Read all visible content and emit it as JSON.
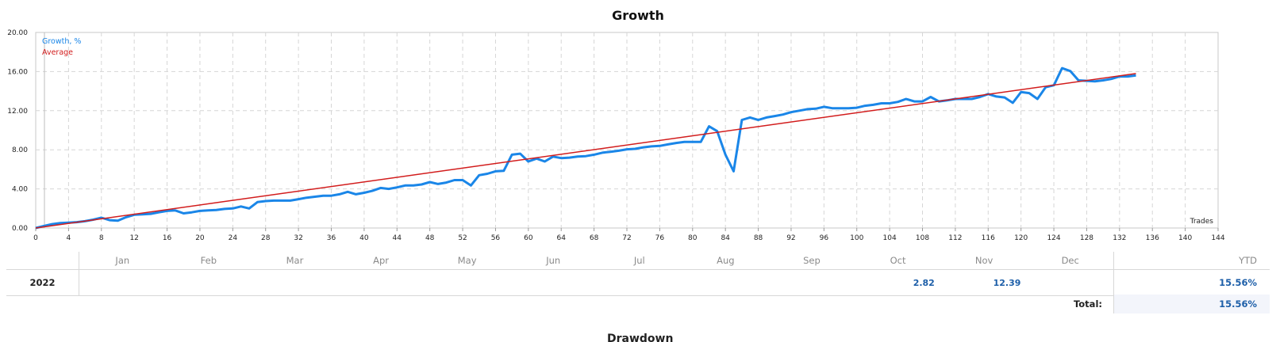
{
  "chart_data": {
    "type": "line",
    "title": "Growth",
    "xlabel": "Trades",
    "ylabel": "",
    "xlim": [
      0,
      144
    ],
    "ylim": [
      0,
      20
    ],
    "x_ticks": [
      0,
      4,
      8,
      12,
      16,
      20,
      24,
      28,
      32,
      36,
      40,
      44,
      48,
      52,
      56,
      60,
      64,
      68,
      72,
      76,
      80,
      84,
      88,
      92,
      96,
      100,
      104,
      108,
      112,
      116,
      120,
      124,
      128,
      132,
      136,
      140,
      144
    ],
    "y_ticks": [
      "0.00",
      "4.00",
      "8.00",
      "12.00",
      "16.00",
      "20.00"
    ],
    "grid": true,
    "legend": "top-left",
    "series": [
      {
        "name": "Growth, %",
        "color": "#1a86e8",
        "points": [
          [
            0,
            0
          ],
          [
            1,
            0.2
          ],
          [
            2,
            0.4
          ],
          [
            3,
            0.5
          ],
          [
            4,
            0.55
          ],
          [
            5,
            0.6
          ],
          [
            6,
            0.7
          ],
          [
            7,
            0.85
          ],
          [
            8,
            1.05
          ],
          [
            9,
            0.8
          ],
          [
            10,
            0.75
          ],
          [
            11,
            1.1
          ],
          [
            12,
            1.35
          ],
          [
            13,
            1.4
          ],
          [
            14,
            1.45
          ],
          [
            15,
            1.6
          ],
          [
            16,
            1.75
          ],
          [
            17,
            1.8
          ],
          [
            18,
            1.5
          ],
          [
            19,
            1.6
          ],
          [
            20,
            1.75
          ],
          [
            21,
            1.8
          ],
          [
            22,
            1.85
          ],
          [
            23,
            1.95
          ],
          [
            24,
            2.0
          ],
          [
            25,
            2.2
          ],
          [
            26,
            2.0
          ],
          [
            27,
            2.65
          ],
          [
            28,
            2.75
          ],
          [
            29,
            2.8
          ],
          [
            30,
            2.8
          ],
          [
            31,
            2.8
          ],
          [
            32,
            2.95
          ],
          [
            33,
            3.1
          ],
          [
            34,
            3.2
          ],
          [
            35,
            3.3
          ],
          [
            36,
            3.3
          ],
          [
            37,
            3.45
          ],
          [
            38,
            3.7
          ],
          [
            39,
            3.45
          ],
          [
            40,
            3.6
          ],
          [
            41,
            3.8
          ],
          [
            42,
            4.1
          ],
          [
            43,
            4.0
          ],
          [
            44,
            4.15
          ],
          [
            45,
            4.35
          ],
          [
            46,
            4.35
          ],
          [
            47,
            4.45
          ],
          [
            48,
            4.7
          ],
          [
            49,
            4.5
          ],
          [
            50,
            4.65
          ],
          [
            51,
            4.9
          ],
          [
            52,
            4.9
          ],
          [
            53,
            4.35
          ],
          [
            54,
            5.4
          ],
          [
            55,
            5.55
          ],
          [
            56,
            5.8
          ],
          [
            57,
            5.85
          ],
          [
            58,
            7.5
          ],
          [
            59,
            7.6
          ],
          [
            60,
            6.8
          ],
          [
            61,
            7.1
          ],
          [
            62,
            6.8
          ],
          [
            63,
            7.3
          ],
          [
            64,
            7.15
          ],
          [
            65,
            7.2
          ],
          [
            66,
            7.3
          ],
          [
            67,
            7.35
          ],
          [
            68,
            7.5
          ],
          [
            69,
            7.7
          ],
          [
            70,
            7.8
          ],
          [
            71,
            7.9
          ],
          [
            72,
            8.05
          ],
          [
            73,
            8.1
          ],
          [
            74,
            8.25
          ],
          [
            75,
            8.35
          ],
          [
            76,
            8.4
          ],
          [
            77,
            8.55
          ],
          [
            78,
            8.7
          ],
          [
            79,
            8.8
          ],
          [
            80,
            8.8
          ],
          [
            81,
            8.8
          ],
          [
            82,
            10.4
          ],
          [
            83,
            9.9
          ],
          [
            84,
            7.5
          ],
          [
            85,
            5.8
          ],
          [
            86,
            11.05
          ],
          [
            87,
            11.3
          ],
          [
            88,
            11.05
          ],
          [
            89,
            11.3
          ],
          [
            90,
            11.45
          ],
          [
            91,
            11.6
          ],
          [
            92,
            11.85
          ],
          [
            93,
            12.0
          ],
          [
            94,
            12.15
          ],
          [
            95,
            12.2
          ],
          [
            96,
            12.4
          ],
          [
            97,
            12.25
          ],
          [
            98,
            12.25
          ],
          [
            99,
            12.25
          ],
          [
            100,
            12.3
          ],
          [
            101,
            12.5
          ],
          [
            102,
            12.6
          ],
          [
            103,
            12.75
          ],
          [
            104,
            12.75
          ],
          [
            105,
            12.9
          ],
          [
            106,
            13.2
          ],
          [
            107,
            12.95
          ],
          [
            108,
            12.95
          ],
          [
            109,
            13.4
          ],
          [
            110,
            12.95
          ],
          [
            111,
            13.05
          ],
          [
            112,
            13.2
          ],
          [
            113,
            13.2
          ],
          [
            114,
            13.2
          ],
          [
            115,
            13.4
          ],
          [
            116,
            13.7
          ],
          [
            117,
            13.45
          ],
          [
            118,
            13.35
          ],
          [
            119,
            12.8
          ],
          [
            120,
            13.9
          ],
          [
            121,
            13.8
          ],
          [
            122,
            13.2
          ],
          [
            123,
            14.4
          ],
          [
            124,
            14.6
          ],
          [
            125,
            16.35
          ],
          [
            126,
            16.05
          ],
          [
            127,
            15.1
          ],
          [
            128,
            15.05
          ],
          [
            129,
            15.0
          ],
          [
            130,
            15.1
          ],
          [
            131,
            15.25
          ],
          [
            132,
            15.5
          ],
          [
            133,
            15.5
          ],
          [
            134,
            15.6
          ]
        ]
      },
      {
        "name": "Average",
        "color": "#d21c1c",
        "points": [
          [
            0,
            0
          ],
          [
            134,
            15.8
          ]
        ]
      }
    ]
  },
  "table": {
    "months": [
      "Jan",
      "Feb",
      "Mar",
      "Apr",
      "May",
      "Jun",
      "Jul",
      "Aug",
      "Sep",
      "Oct",
      "Nov",
      "Dec"
    ],
    "ytd_label": "YTD",
    "rows": [
      {
        "year": "2022",
        "values": [
          "",
          "",
          "",
          "",
          "",
          "",
          "",
          "",
          "",
          "2.82",
          "12.39",
          ""
        ],
        "ytd": "15.56%"
      }
    ],
    "total_label": "Total:",
    "total_value": "15.56%"
  },
  "next_section_title": "Drawdown"
}
